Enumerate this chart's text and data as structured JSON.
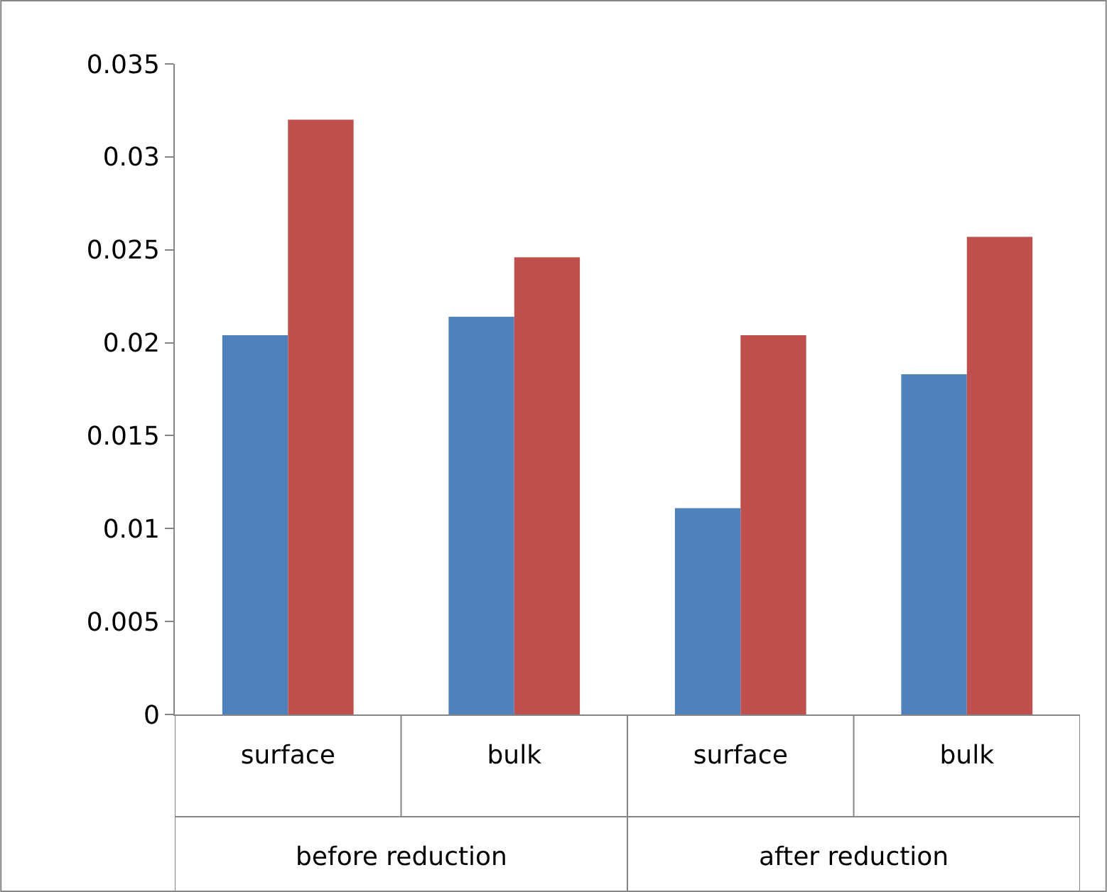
{
  "chart_data": {
    "type": "bar",
    "categories": [
      "surface",
      "bulk",
      "surface",
      "bulk"
    ],
    "series": [
      {
        "color": "#4f81bd",
        "values": [
          0.0204,
          0.0214,
          0.0111,
          0.0183
        ]
      },
      {
        "color": "#c0504d",
        "values": [
          0.032,
          0.0246,
          0.0204,
          0.0257
        ]
      }
    ],
    "annotations": [
      "before reduction",
      "after reduction"
    ],
    "ylim": [
      0,
      0.035
    ],
    "yticks": [
      0,
      0.005,
      0.01,
      0.015,
      0.02,
      0.025,
      0.03,
      0.035
    ]
  }
}
